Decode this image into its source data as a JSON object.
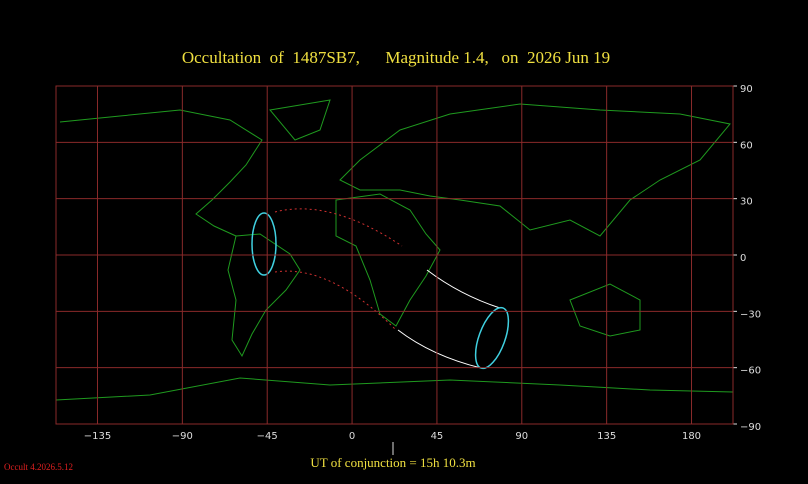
{
  "chart_data": {
    "type": "map",
    "title": "Occultation  of  1487SB7,      Magnitude 1.4,   on  2026 Jun 19",
    "xlim": [
      -157,
      202
    ],
    "ylim": [
      -90,
      90
    ],
    "xticks": [
      {
        "value": -135,
        "label": "−135"
      },
      {
        "value": -90,
        "label": "−90"
      },
      {
        "value": -45,
        "label": "−45"
      },
      0,
      45,
      90,
      135,
      180
    ],
    "yticks": [
      {
        "value": -90,
        "label": "−90"
      },
      {
        "value": -60,
        "label": "−60"
      },
      {
        "value": -30,
        "label": "−30"
      },
      0,
      30,
      60,
      90
    ],
    "grid": true,
    "grid_color": "#8a2a2a",
    "caption": "UT of conjunction = 15h 10.3m",
    "version": "Occult 4.2026.5.12"
  }
}
